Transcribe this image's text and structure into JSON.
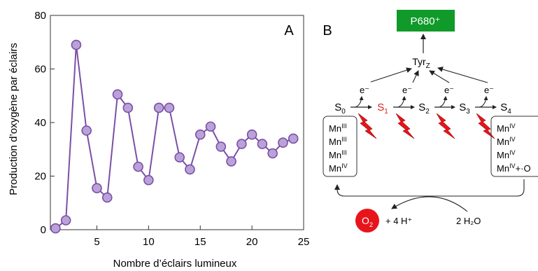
{
  "panel_a": {
    "label": "A",
    "chart_data": {
      "type": "line",
      "title": "",
      "xlabel": "Nombre d’éclairs lumineux",
      "ylabel": "Production d’oxygène par éclairs",
      "xlim": [
        0.5,
        25
      ],
      "ylim": [
        0,
        80
      ],
      "x_ticks": [
        5,
        10,
        15,
        20,
        25
      ],
      "y_ticks": [
        0,
        20,
        40,
        60,
        80
      ],
      "grid": false,
      "legend": "none",
      "color": "#7b4fa6",
      "marker_fill": "#b9a2d8",
      "series": [
        {
          "x": [
            1,
            2,
            3,
            4,
            5,
            6,
            7,
            8,
            9,
            10,
            11,
            12,
            13,
            14,
            15,
            16,
            17,
            18,
            19,
            20,
            21,
            22,
            23,
            24
          ],
          "values": [
            0.5,
            3.5,
            69,
            37,
            15.5,
            12,
            50.5,
            45.5,
            23.5,
            18.5,
            45.5,
            45.5,
            27,
            22.5,
            35.5,
            38.5,
            31,
            25.5,
            32,
            35.5,
            32,
            28.5,
            32.5,
            34
          ]
        }
      ]
    }
  },
  "panel_b": {
    "label": "B",
    "p680": "P680⁺",
    "tyrz_main": "Tyr",
    "tyrz_sub": "Z",
    "electron": "e⁻",
    "states": [
      {
        "main": "S",
        "sub": "0"
      },
      {
        "main": "S",
        "sub": "1"
      },
      {
        "main": "S",
        "sub": "2"
      },
      {
        "main": "S",
        "sub": "3"
      },
      {
        "main": "S",
        "sub": "4"
      }
    ],
    "left_box": [
      {
        "main": "Mn",
        "sup": "III"
      },
      {
        "main": "Mn",
        "sup": "III"
      },
      {
        "main": "Mn",
        "sup": "III"
      },
      {
        "main": "Mn",
        "sup": "IV"
      }
    ],
    "right_box": [
      {
        "main": "Mn",
        "sup": "IV",
        "suffix": ""
      },
      {
        "main": "Mn",
        "sup": "IV",
        "suffix": ""
      },
      {
        "main": "Mn",
        "sup": "IV",
        "suffix": ""
      },
      {
        "main": "Mn",
        "sup": "IV",
        "suffix": "+·O"
      }
    ],
    "o2": "O",
    "o2_sub": "2",
    "proton_text": "+ 4 H⁺",
    "water_text": "2 H₂O",
    "colors": {
      "green": "#109a2a",
      "red": "#e8141b",
      "highlight_state": "#d42222"
    }
  }
}
